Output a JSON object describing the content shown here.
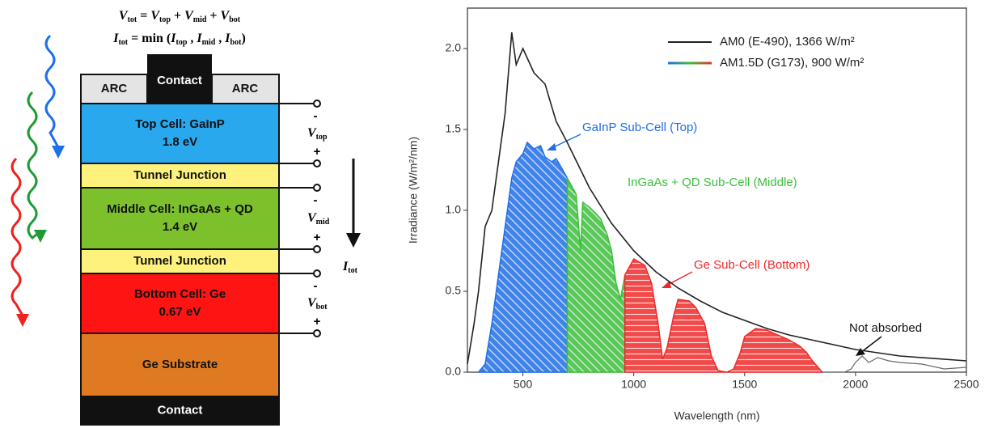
{
  "diagram": {
    "equations": [
      [
        {
          "base": "V",
          "sub": "tot"
        },
        " = ",
        {
          "base": "V",
          "sub": "top"
        },
        " + ",
        {
          "base": "V",
          "sub": "mid"
        },
        " + ",
        {
          "base": "V",
          "sub": "bot"
        }
      ],
      [
        {
          "base": "I",
          "sub": "tot"
        },
        " = min (",
        {
          "base": "I",
          "sub": "top"
        },
        " , ",
        {
          "base": "I",
          "sub": "mid"
        },
        " , ",
        {
          "base": "I",
          "sub": "bot"
        },
        ")"
      ]
    ],
    "top_row": [
      "ARC",
      "Contact",
      "ARC"
    ],
    "layers": [
      {
        "label": [
          "Top Cell: GaInP",
          "1.8 eV"
        ],
        "color": "#2aa8ee"
      },
      {
        "label": [
          "Tunnel Junction"
        ],
        "color": "#fff27c"
      },
      {
        "label": [
          "Middle Cell: InGaAs + QD",
          "1.4 eV"
        ],
        "color": "#7cc12c"
      },
      {
        "label": [
          "Tunnel Junction"
        ],
        "color": "#fff27c"
      },
      {
        "label": [
          "Bottom Cell: Ge",
          "0.67 eV"
        ],
        "color": "#ff1414"
      },
      {
        "label": [
          "Ge Substrate"
        ],
        "color": "#e07a22"
      },
      {
        "label": [
          "Contact"
        ],
        "color": "#111111"
      }
    ],
    "terminals": [
      {
        "voltage": {
          "base": "V",
          "sub": "top"
        },
        "minus": "-",
        "plus": "+"
      },
      {
        "voltage": {
          "base": "V",
          "sub": "mid"
        },
        "minus": "-",
        "plus": "+"
      },
      {
        "voltage": {
          "base": "V",
          "sub": "bot"
        },
        "minus": "-",
        "plus": "+"
      }
    ],
    "current": {
      "base": "I",
      "sub": "tot"
    }
  },
  "chart_data": {
    "type": "line",
    "x_label": "Wavelength (nm)",
    "y_label": "Irradiance (W/m²/nm)",
    "xlim": [
      250,
      2500
    ],
    "xticks": [
      500,
      1000,
      1500,
      2000,
      2500
    ],
    "ylim": [
      0,
      2.25
    ],
    "yticks": [
      {
        "value": 0,
        "label": "0.0"
      },
      0.5,
      {
        "value": 1,
        "label": "1.0"
      },
      1.5,
      {
        "value": 2,
        "label": "2.0"
      }
    ],
    "legend": "upper right",
    "series": [
      {
        "name": "AM0 (E-490), 1366 W/m²",
        "color": "#222222",
        "x": [
          250,
          280,
          300,
          330,
          360,
          400,
          420,
          450,
          470,
          500,
          550,
          600,
          650,
          700,
          750,
          800,
          900,
          1000,
          1100,
          1200,
          1300,
          1400,
          1500,
          1600,
          1700,
          1800,
          2000,
          2200,
          2500
        ],
        "values": [
          0.05,
          0.3,
          0.5,
          0.9,
          1.0,
          1.4,
          1.6,
          2.1,
          1.9,
          2.0,
          1.85,
          1.78,
          1.55,
          1.42,
          1.28,
          1.14,
          0.92,
          0.75,
          0.62,
          0.52,
          0.44,
          0.37,
          0.32,
          0.27,
          0.23,
          0.2,
          0.14,
          0.1,
          0.07
        ]
      },
      {
        "name": "AM1.5D (G173), 900 W/m²",
        "segments": [
          {
            "label": "GaInP Sub-Cell (Top)",
            "color": "#1e6fe8",
            "hatch": true,
            "x": [
              300,
              330,
              360,
              400,
              430,
              450,
              470,
              500,
              520,
              550,
              580,
              600,
              630,
              650,
              680,
              700
            ],
            "values": [
              0,
              0.05,
              0.3,
              0.7,
              1.0,
              1.2,
              1.3,
              1.35,
              1.42,
              1.38,
              1.4,
              1.33,
              1.3,
              1.32,
              1.25,
              1.2
            ]
          },
          {
            "label": "InGaAs + QD Sub-Cell (Middle)",
            "color": "#3bbf3b",
            "hatch": true,
            "x": [
              700,
              720,
              740,
              760,
              770,
              800,
              830,
              850,
              880,
              900,
              920,
              940,
              960
            ],
            "values": [
              1.2,
              1.15,
              1.1,
              0.75,
              1.05,
              1.02,
              0.98,
              0.95,
              0.85,
              0.75,
              0.55,
              0.45,
              0.6
            ]
          },
          {
            "label": "Ge Sub-Cell (Bottom)",
            "color": "#ee2a2a",
            "hatch": true,
            "x": [
              960,
              1000,
              1050,
              1080,
              1110,
              1130,
              1150,
              1180,
              1200,
              1250,
              1280,
              1320,
              1350,
              1380,
              1420,
              1450,
              1480,
              1500,
              1550,
              1600,
              1650,
              1700,
              1750,
              1780,
              1800,
              1850
            ],
            "values": [
              0.6,
              0.7,
              0.66,
              0.55,
              0.3,
              0.08,
              0.15,
              0.35,
              0.45,
              0.44,
              0.4,
              0.3,
              0.1,
              0.01,
              0,
              0.02,
              0.12,
              0.22,
              0.27,
              0.26,
              0.23,
              0.2,
              0.16,
              0.12,
              0.08,
              0
            ]
          },
          {
            "label": "Not absorbed",
            "color": "#666666",
            "hatch": false,
            "x": [
              1850,
              1900,
              1950,
              1980,
              2000,
              2030,
              2060,
              2100,
              2150,
              2200,
              2300,
              2400,
              2500
            ],
            "values": [
              0,
              0,
              0,
              0.02,
              0.06,
              0.1,
              0.06,
              0.09,
              0.07,
              0.06,
              0.05,
              0.02,
              0.03
            ]
          }
        ]
      }
    ]
  }
}
